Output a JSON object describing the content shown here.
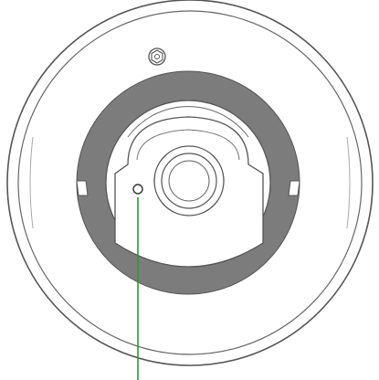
{
  "diagram": {
    "subject": "camera-mount-top-view",
    "colors": {
      "background": "#ffffff",
      "outline": "#555555",
      "outline_light": "#8a8a8a",
      "band": "#7c7c7c",
      "leader_line": "#2f9a2f"
    },
    "callouts": [
      {
        "name": "reset-hole-callout",
        "target": "reset-hole",
        "label": ""
      }
    ]
  }
}
